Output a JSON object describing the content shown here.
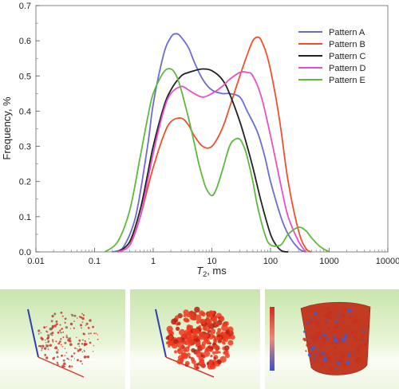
{
  "chart_data": {
    "type": "line",
    "title": "",
    "xscale": "log",
    "xlim": [
      0.01,
      10000
    ],
    "ylim": [
      0,
      0.7
    ],
    "x_ticks": [
      0.01,
      0.1,
      1,
      10,
      100,
      1000,
      10000
    ],
    "x_tick_labels": [
      "0.01",
      "0.1",
      "1",
      "10",
      "100",
      "1000",
      "10000"
    ],
    "y_ticks": [
      0,
      0.1,
      0.2,
      0.3,
      0.4,
      0.5,
      0.6,
      0.7
    ],
    "y_tick_labels": [
      "0.0",
      "0.1",
      "0.2",
      "0.3",
      "0.4",
      "0.5",
      "0.6",
      "0.7"
    ],
    "xlabel": "T",
    "xlabel_sub": "2",
    "xlabel_suffix": ", ms",
    "ylabel": "Frequency, %",
    "legend_position": "top-right",
    "grid": false,
    "series": [
      {
        "name": "Pattern A",
        "color": "#6b6bd6",
        "x": [
          0.2,
          0.3,
          0.5,
          0.8,
          1,
          1.5,
          2,
          2.5,
          3,
          4,
          5,
          7,
          10,
          15,
          20,
          30,
          40,
          60,
          80,
          100,
          150,
          200,
          300,
          400
        ],
        "y": [
          0,
          0.01,
          0.1,
          0.3,
          0.42,
          0.56,
          0.61,
          0.62,
          0.61,
          0.58,
          0.54,
          0.49,
          0.46,
          0.45,
          0.45,
          0.44,
          0.4,
          0.34,
          0.27,
          0.2,
          0.1,
          0.05,
          0.01,
          0
        ]
      },
      {
        "name": "Pattern B",
        "color": "#f0502a",
        "x": [
          0.25,
          0.4,
          0.6,
          0.8,
          1,
          1.5,
          2,
          3,
          4,
          5,
          7,
          10,
          15,
          20,
          30,
          40,
          50,
          60,
          70,
          90,
          120,
          150,
          200,
          300,
          400,
          500
        ],
        "y": [
          0,
          0.02,
          0.1,
          0.18,
          0.24,
          0.33,
          0.37,
          0.38,
          0.36,
          0.33,
          0.3,
          0.3,
          0.35,
          0.41,
          0.5,
          0.56,
          0.6,
          0.61,
          0.6,
          0.55,
          0.45,
          0.35,
          0.2,
          0.06,
          0.01,
          0
        ]
      },
      {
        "name": "Pattern C",
        "color": "#222222",
        "x": [
          0.25,
          0.4,
          0.6,
          0.8,
          1,
          1.5,
          2,
          3,
          4,
          5,
          7,
          10,
          15,
          20,
          30,
          40,
          50,
          70,
          100,
          130,
          160,
          200
        ],
        "y": [
          0,
          0.03,
          0.12,
          0.22,
          0.3,
          0.41,
          0.46,
          0.5,
          0.51,
          0.515,
          0.52,
          0.515,
          0.49,
          0.45,
          0.37,
          0.3,
          0.24,
          0.14,
          0.05,
          0.015,
          0.002,
          0
        ]
      },
      {
        "name": "Pattern D",
        "color": "#e84fc8",
        "x": [
          0.25,
          0.4,
          0.6,
          0.8,
          1,
          1.5,
          2,
          3,
          4,
          5,
          7,
          10,
          15,
          20,
          30,
          40,
          50,
          70,
          100,
          150,
          200,
          300,
          400
        ],
        "y": [
          0,
          0.02,
          0.1,
          0.2,
          0.28,
          0.4,
          0.45,
          0.47,
          0.46,
          0.45,
          0.44,
          0.45,
          0.47,
          0.49,
          0.51,
          0.51,
          0.5,
          0.44,
          0.33,
          0.19,
          0.1,
          0.03,
          0
        ]
      },
      {
        "name": "Pattern E",
        "color": "#5cba3c",
        "x": [
          0.15,
          0.25,
          0.4,
          0.6,
          0.8,
          1,
          1.5,
          2,
          2.5,
          3,
          4,
          5,
          6,
          7,
          8,
          10,
          12,
          15,
          20,
          25,
          30,
          35,
          40,
          50,
          60,
          80,
          100,
          150,
          200,
          300,
          400,
          500,
          700,
          1000
        ],
        "y": [
          0,
          0.03,
          0.12,
          0.27,
          0.38,
          0.45,
          0.51,
          0.52,
          0.5,
          0.46,
          0.38,
          0.31,
          0.25,
          0.21,
          0.18,
          0.16,
          0.18,
          0.23,
          0.3,
          0.32,
          0.32,
          0.3,
          0.27,
          0.2,
          0.13,
          0.05,
          0.02,
          0.02,
          0.05,
          0.07,
          0.06,
          0.04,
          0.015,
          0
        ]
      }
    ]
  },
  "panels": [
    {
      "name": "panel-pore-network-sparse",
      "background_top": "#d6ecc0",
      "background_bottom": "#f7faf0",
      "marks_color": "#d0342a"
    },
    {
      "name": "panel-pore-network-dense",
      "background_top": "#d6ecc0",
      "background_bottom": "#f7faf0",
      "marks_color": "#ee3a1e"
    },
    {
      "name": "panel-pore-volume",
      "background_top": "#d6ecc0",
      "background_bottom": "#f7faf0",
      "marks_color": "#c8301e",
      "accent_color": "#3a5fd0"
    }
  ]
}
